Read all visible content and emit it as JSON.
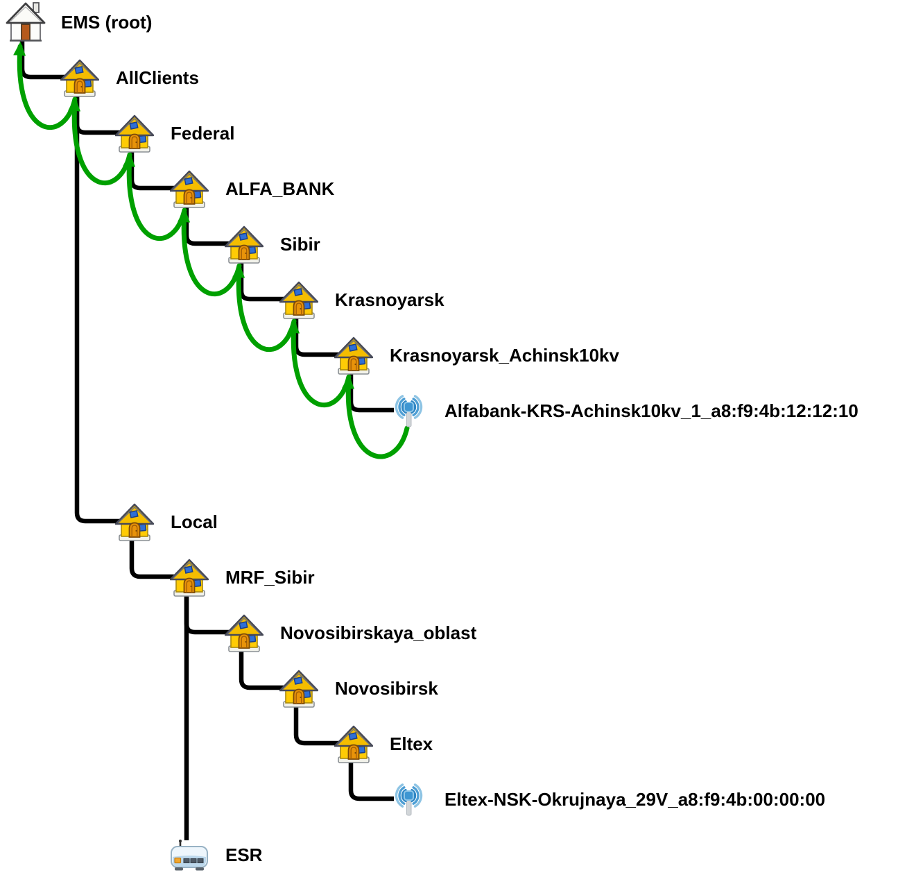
{
  "tree": {
    "colors": {
      "connector": "#000000",
      "parent_arrow": "#00a000",
      "label": "#000000",
      "house_body": "#ffcb05",
      "house_window": "#2e6fd6",
      "house_door": "#e8930a",
      "antenna_blue": "#3e96d2"
    },
    "nodes": [
      {
        "id": "ems",
        "label": "EMS (root)",
        "icon": "home-root",
        "col": 0,
        "row": 0,
        "parent": null,
        "green_arrow_to_parent": false
      },
      {
        "id": "allclients",
        "label": "AllClients",
        "icon": "home",
        "col": 1,
        "row": 1,
        "parent": "ems",
        "green_arrow_to_parent": true
      },
      {
        "id": "federal",
        "label": "Federal",
        "icon": "home",
        "col": 2,
        "row": 2,
        "parent": "allclients",
        "green_arrow_to_parent": true
      },
      {
        "id": "alfa_bank",
        "label": "ALFA_BANK",
        "icon": "home",
        "col": 3,
        "row": 3,
        "parent": "federal",
        "green_arrow_to_parent": true
      },
      {
        "id": "sibir",
        "label": "Sibir",
        "icon": "home",
        "col": 4,
        "row": 4,
        "parent": "alfa_bank",
        "green_arrow_to_parent": true
      },
      {
        "id": "krasnoyarsk",
        "label": "Krasnoyarsk",
        "icon": "home",
        "col": 5,
        "row": 5,
        "parent": "sibir",
        "green_arrow_to_parent": true
      },
      {
        "id": "krasnoyarsk_achinsk10kv",
        "label": "Krasnoyarsk_Achinsk10kv",
        "icon": "home",
        "col": 6,
        "row": 6,
        "parent": "krasnoyarsk",
        "green_arrow_to_parent": true
      },
      {
        "id": "alfabank_krs_achinsk10kv_device",
        "label": "Alfabank-KRS-Achinsk10kv_1_a8:f9:4b:12:12:10",
        "icon": "antenna",
        "col": 7,
        "row": 7,
        "parent": "krasnoyarsk_achinsk10kv",
        "green_arrow_to_parent": true
      },
      {
        "id": "local",
        "label": "Local",
        "icon": "home",
        "col": 2,
        "row": 9,
        "parent": "allclients",
        "green_arrow_to_parent": false
      },
      {
        "id": "mrf_sibir",
        "label": "MRF_Sibir",
        "icon": "home",
        "col": 3,
        "row": 10,
        "parent": "local",
        "green_arrow_to_parent": false
      },
      {
        "id": "novosibirskaya_oblast",
        "label": "Novosibirskaya_oblast",
        "icon": "home",
        "col": 4,
        "row": 11,
        "parent": "mrf_sibir",
        "green_arrow_to_parent": false
      },
      {
        "id": "novosibirsk",
        "label": "Novosibirsk",
        "icon": "home",
        "col": 5,
        "row": 12,
        "parent": "novosibirskaya_oblast",
        "green_arrow_to_parent": false
      },
      {
        "id": "eltex",
        "label": "Eltex",
        "icon": "home",
        "col": 6,
        "row": 13,
        "parent": "novosibirsk",
        "green_arrow_to_parent": false
      },
      {
        "id": "eltex_nsk_okrujnaya_device",
        "label": "Eltex-NSK-Okrujnaya_29V_a8:f9:4b:00:00:00",
        "icon": "antenna",
        "col": 7,
        "row": 14,
        "parent": "eltex",
        "green_arrow_to_parent": false
      },
      {
        "id": "esr",
        "label": "ESR",
        "icon": "router",
        "col": 3,
        "row": 15,
        "parent": "mrf_sibir",
        "green_arrow_to_parent": false,
        "attach": "top"
      }
    ]
  }
}
